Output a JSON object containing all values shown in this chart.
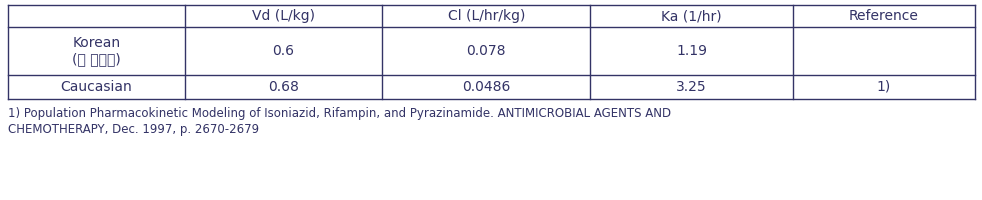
{
  "col_headers": [
    "",
    "Vd (L/kg)",
    "Cl (L/hr/kg)",
    "Ka (1/hr)",
    "Reference"
  ],
  "rows": [
    [
      "Korean\n(본 시험군)",
      "0.6",
      "0.078",
      "1.19",
      ""
    ],
    [
      "Caucasian",
      "0.68",
      "0.0486",
      "3.25",
      "1)"
    ]
  ],
  "footnote_line1": "1) Population Pharmacokinetic Modeling of Isoniazid, Rifampin, and Pyrazinamide. ANTIMICROBIAL AGENTS AND",
  "footnote_line2": "CHEMOTHERAPY, Dec. 1997, p. 2670-2679",
  "border_color": "#333366",
  "text_color": "#333366",
  "font_size": 10,
  "footnote_font_size": 8.5
}
